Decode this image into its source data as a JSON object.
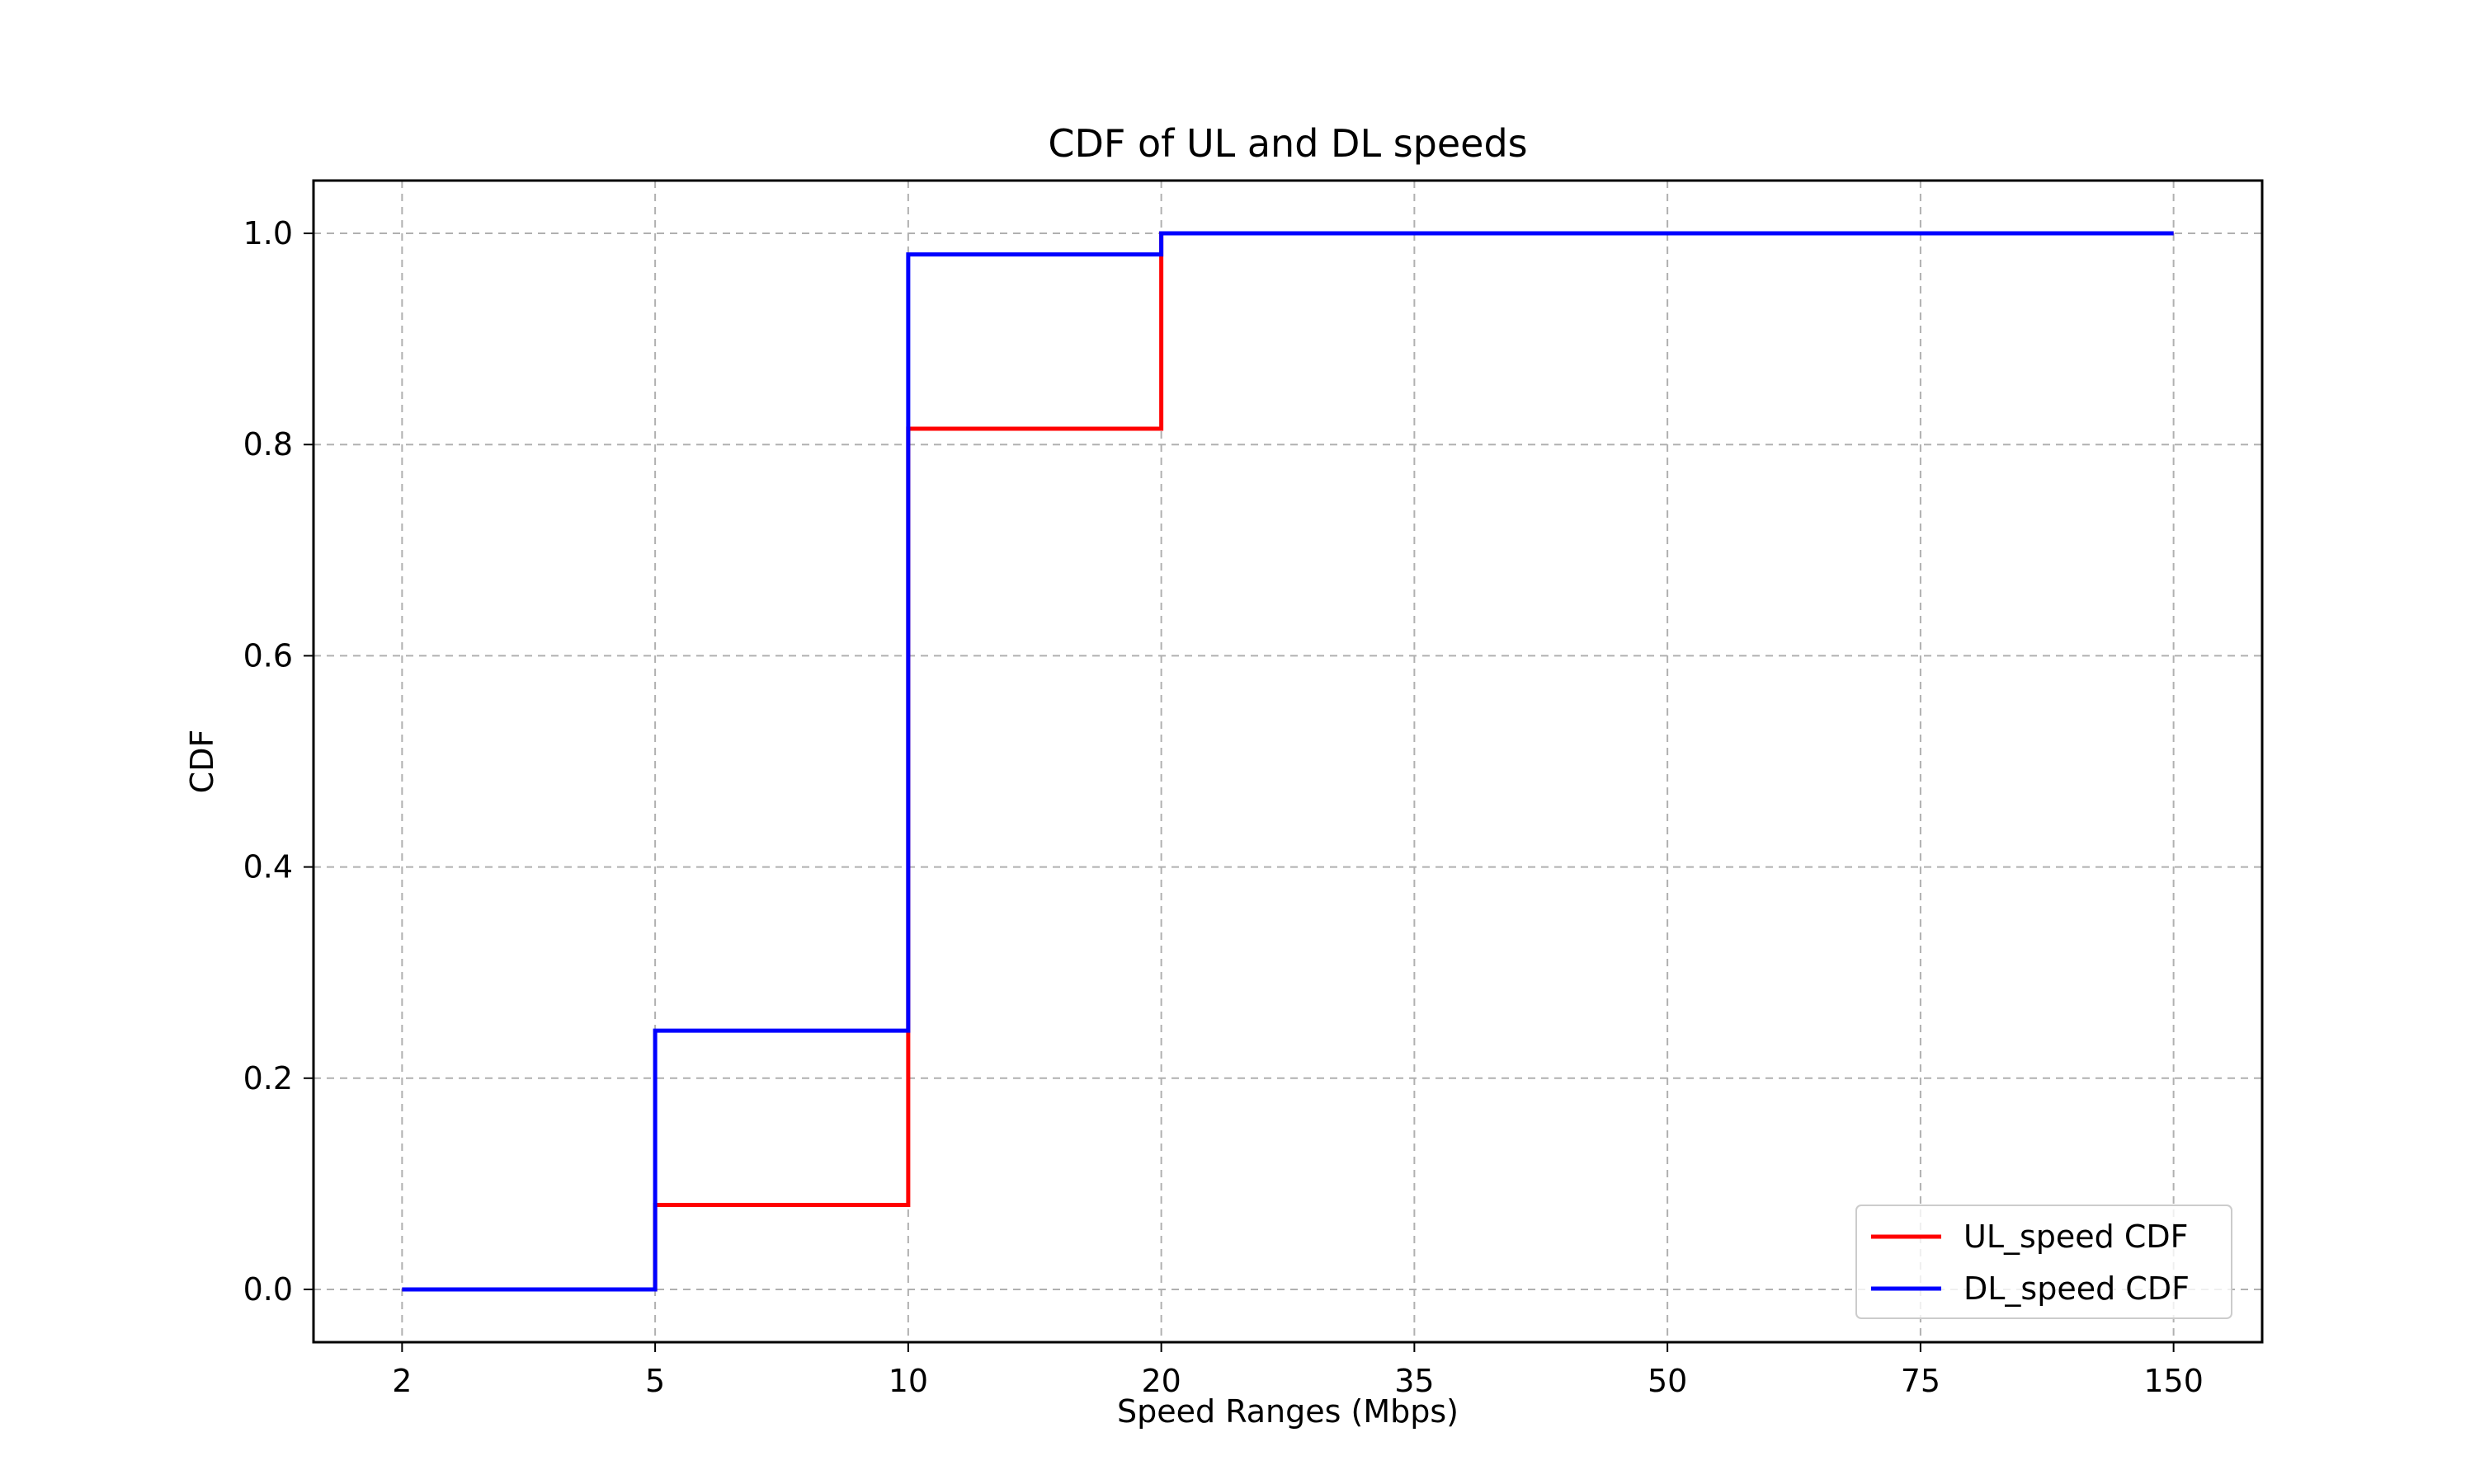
{
  "chart_data": {
    "type": "line",
    "drawstyle": "steps-post",
    "title": "CDF of UL and DL speeds",
    "xlabel": "Speed Ranges (Mbps)",
    "ylabel": "CDF",
    "categories": [
      "2",
      "5",
      "10",
      "20",
      "35",
      "50",
      "75",
      "150"
    ],
    "ylim": [
      -0.05,
      1.05
    ],
    "yticks": [
      "0.0",
      "0.2",
      "0.4",
      "0.6",
      "0.8",
      "1.0"
    ],
    "grid": true,
    "legend_position": "bottom-right",
    "series": [
      {
        "name": "UL_speed CDF",
        "color": "#ff0000",
        "values": [
          0.0,
          0.08,
          0.815,
          1.0,
          1.0,
          1.0,
          1.0,
          1.0
        ]
      },
      {
        "name": "DL_speed CDF",
        "color": "#0000ff",
        "values": [
          0.0,
          0.245,
          0.98,
          1.0,
          1.0,
          1.0,
          1.0,
          1.0
        ]
      }
    ]
  }
}
